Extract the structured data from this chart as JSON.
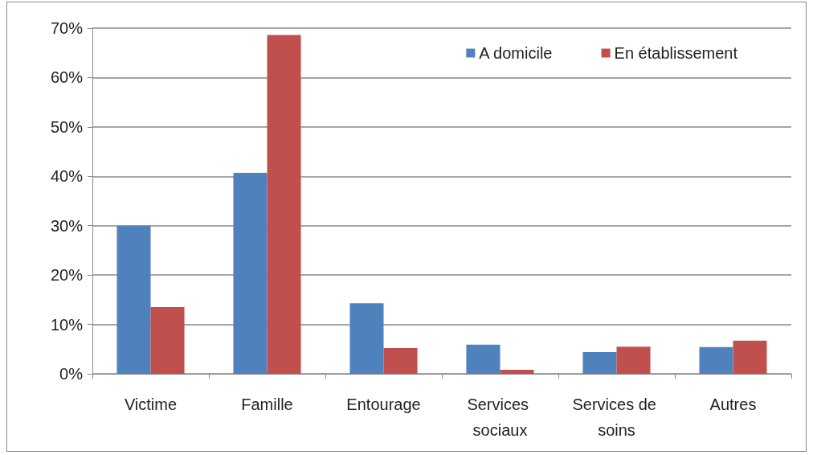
{
  "chart_data": {
    "type": "bar",
    "categories": [
      "Victime",
      "Famille",
      "Entourage",
      "Services sociaux",
      "Services de soins",
      "Autres"
    ],
    "series": [
      {
        "name": "A domicile",
        "color": "#4f81bd",
        "values": [
          30.0,
          40.7,
          14.3,
          5.9,
          4.4,
          5.4
        ]
      },
      {
        "name": "En établissement",
        "color": "#c0504d",
        "values": [
          13.5,
          68.6,
          5.2,
          0.8,
          5.5,
          6.7
        ]
      }
    ],
    "ylim": [
      0,
      70
    ],
    "yticks": [
      {
        "value": 0,
        "label": "0%"
      },
      {
        "value": 10,
        "label": "10%"
      },
      {
        "value": 20,
        "label": "20%"
      },
      {
        "value": 30,
        "label": "30%"
      },
      {
        "value": 40,
        "label": "40%"
      },
      {
        "value": 50,
        "label": "50%"
      },
      {
        "value": 60,
        "label": "60%"
      },
      {
        "value": 70,
        "label": "70%"
      }
    ],
    "grid": "y",
    "legend": "top right"
  }
}
